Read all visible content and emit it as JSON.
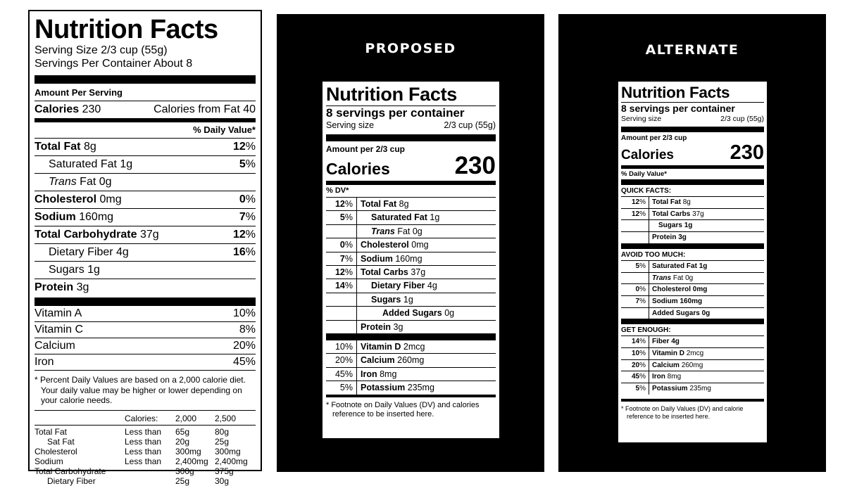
{
  "current": {
    "title": "Nutrition Facts",
    "serving_size": "Serving Size 2/3 cup (55g)",
    "servings_per_container": "Servings Per Container About 8",
    "amount_per_serving": "Amount Per Serving",
    "calories_label": "Calories",
    "calories_value": "230",
    "calories_from_fat": "Calories from Fat 40",
    "dv_header": "% Daily Value*",
    "nutrients": [
      {
        "name": "Total Fat",
        "amount": "8g",
        "dv": "12",
        "pct": "%"
      },
      {
        "name": "Saturated Fat",
        "amount": "1g",
        "dv": "5",
        "pct": "%"
      },
      {
        "name": "Trans",
        "amount": "Fat 0g",
        "dv": "",
        "pct": ""
      },
      {
        "name": "Cholesterol",
        "amount": "0mg",
        "dv": "0",
        "pct": "%"
      },
      {
        "name": "Sodium",
        "amount": "160mg",
        "dv": "7",
        "pct": "%"
      },
      {
        "name": "Total Carbohydrate",
        "amount": "37g",
        "dv": "12",
        "pct": "%"
      },
      {
        "name": "Dietary Fiber",
        "amount": "4g",
        "dv": "16",
        "pct": "%"
      },
      {
        "name": "Sugars",
        "amount": "1g",
        "dv": "",
        "pct": ""
      },
      {
        "name": "Protein",
        "amount": "3g",
        "dv": "",
        "pct": ""
      }
    ],
    "vitamins": [
      {
        "name": "Vitamin A",
        "dv": "10%"
      },
      {
        "name": "Vitamin C",
        "dv": "8%"
      },
      {
        "name": "Calcium",
        "dv": "20%"
      },
      {
        "name": "Iron",
        "dv": "45%"
      }
    ],
    "footnote_1": "* Percent Daily Values are based on a 2,000 calorie diet.",
    "footnote_2": "Your daily value may be higher or lower depending on",
    "footnote_3": "your calorie needs.",
    "dv_table": {
      "header": [
        "",
        "Calories:",
        "2,000",
        "2,500"
      ],
      "rows": [
        [
          "Total Fat",
          "Less than",
          "65g",
          "80g"
        ],
        [
          "Sat Fat",
          "Less than",
          "20g",
          "25g"
        ],
        [
          "Cholesterol",
          "Less than",
          "300mg",
          "300mg"
        ],
        [
          "Sodium",
          "Less than",
          "2,400mg",
          "2,400mg"
        ],
        [
          "Total Carbohydrate",
          "",
          "300g",
          "375g"
        ],
        [
          "Dietary Fiber",
          "",
          "25g",
          "30g"
        ]
      ]
    }
  },
  "proposed": {
    "heading": "PROPOSED",
    "title": "Nutrition Facts",
    "servings_per_container": "8 servings per container",
    "serving_size_label": "Serving size",
    "serving_size_value": "2/3 cup (55g)",
    "amount_per": "Amount per 2/3 cup",
    "calories_label": "Calories",
    "calories_value": "230",
    "dv_header": "% DV*",
    "nutrients": [
      {
        "dv": "12",
        "pct": "%",
        "name": "Total Fat",
        "amount": "8g"
      },
      {
        "dv": "5",
        "pct": "%",
        "name": "Saturated Fat",
        "amount": "1g"
      },
      {
        "dv": "",
        "pct": "",
        "name": "Trans",
        "amount": "Fat 0g"
      },
      {
        "dv": "0",
        "pct": "%",
        "name": "Cholesterol",
        "amount": "0mg"
      },
      {
        "dv": "7",
        "pct": "%",
        "name": "Sodium",
        "amount": "160mg"
      },
      {
        "dv": "12",
        "pct": "%",
        "name": "Total Carbs",
        "amount": "37g"
      },
      {
        "dv": "14",
        "pct": "%",
        "name": "Dietary Fiber",
        "amount": "4g"
      },
      {
        "dv": "",
        "pct": "",
        "name": "Sugars",
        "amount": "1g"
      },
      {
        "dv": "",
        "pct": "",
        "name": "Added Sugars",
        "amount": "0g"
      },
      {
        "dv": "",
        "pct": "",
        "name": "Protein",
        "amount": "3g"
      }
    ],
    "vitamins": [
      {
        "dv": "10%",
        "name": "Vitamin D",
        "amount": "2mcg"
      },
      {
        "dv": "20%",
        "name": "Calcium",
        "amount": "260mg"
      },
      {
        "dv": "45%",
        "name": "Iron",
        "amount": "8mg"
      },
      {
        "dv": "5%",
        "name": "Potassium",
        "amount": "235mg"
      }
    ],
    "footnote_1": "*  Footnote on Daily Values (DV) and calories",
    "footnote_2": "reference to be inserted here."
  },
  "alternate": {
    "heading": "ALTERNATE",
    "title": "Nutrition Facts",
    "servings_per_container": "8 servings per container",
    "serving_size_label": "Serving size",
    "serving_size_value": "2/3 cup (55g)",
    "amount_per": "Amount per 2/3 cup",
    "calories_label": "Calories",
    "calories_value": "230",
    "dv_header": "% Daily Value*",
    "quick_facts": {
      "heading": "QUICK FACTS:",
      "rows": [
        {
          "dv": "12",
          "pct": "%",
          "name": "Total Fat",
          "amount": "8g"
        },
        {
          "dv": "12",
          "pct": "%",
          "name": "Total Carbs",
          "amount": "37g"
        },
        {
          "dv": "",
          "pct": "",
          "name": "Sugars",
          "amount": "1g"
        },
        {
          "dv": "",
          "pct": "",
          "name": "Protein",
          "amount": "3g"
        }
      ]
    },
    "avoid_too_much": {
      "heading": "AVOID TOO MUCH:",
      "rows": [
        {
          "dv": "5",
          "pct": "%",
          "name": "Saturated Fat",
          "amount": "1g"
        },
        {
          "dv": "",
          "pct": "",
          "name": "Trans",
          "amount": "Fat 0g"
        },
        {
          "dv": "0",
          "pct": "%",
          "name": "Cholesterol",
          "amount": "0mg"
        },
        {
          "dv": "7",
          "pct": "%",
          "name": "Sodium",
          "amount": "160mg"
        },
        {
          "dv": "",
          "pct": "",
          "name": "Added Sugars",
          "amount": "0g"
        }
      ]
    },
    "get_enough": {
      "heading": "GET ENOUGH:",
      "rows": [
        {
          "dv": "14",
          "pct": "%",
          "name": "Fiber",
          "amount": "4g"
        },
        {
          "dv": "10",
          "pct": "%",
          "name": "Vitamin D",
          "amount": "2mcg"
        },
        {
          "dv": "20",
          "pct": "%",
          "name": "Calcium",
          "amount": "260mg"
        },
        {
          "dv": "45",
          "pct": "%",
          "name": "Iron",
          "amount": "8mg"
        },
        {
          "dv": "5",
          "pct": "%",
          "name": "Potassium",
          "amount": "235mg"
        }
      ]
    },
    "footnote_1": "*  Footnote on Daily Values (DV) and calorie",
    "footnote_2": "reference to be inserted here."
  }
}
